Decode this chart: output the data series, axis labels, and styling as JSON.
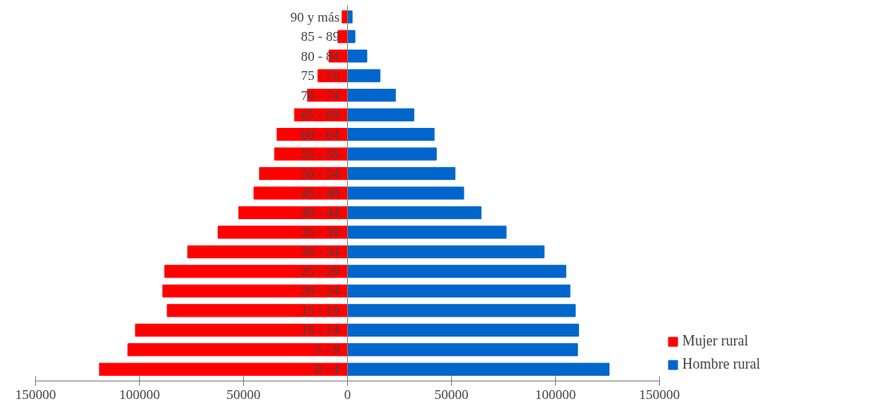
{
  "chart_data": {
    "type": "bar",
    "orientation": "horizontal",
    "stacked": true,
    "categories": [
      "90 y más",
      "85 - 89",
      "80 - 84",
      "75 - 79",
      "70 - 74",
      "65 - 69",
      "60 - 64",
      "55 - 59",
      "50 - 54",
      "45 - 49",
      "40 - 44",
      "35 - 39",
      "30 - 34",
      "25 - 29",
      "20 - 24",
      "15 - 19",
      "10 - 14",
      "5 - 9",
      "0 - 4"
    ],
    "series": [
      {
        "name": "Mujer rural",
        "color": "#ff0000",
        "values": [
          -2600,
          -4600,
          -8900,
          -14200,
          -19200,
          -25500,
          -33900,
          -35100,
          -42300,
          -45000,
          -52300,
          -62200,
          -76800,
          -87900,
          -88800,
          -86700,
          -102000,
          -105600,
          -119300
        ]
      },
      {
        "name": "Hombre rural",
        "color": "#0066cc",
        "values": [
          2200,
          3600,
          9300,
          15600,
          23000,
          31900,
          41700,
          42700,
          51700,
          55900,
          64200,
          76300,
          94500,
          105000,
          107000,
          109500,
          111100,
          110600,
          125800
        ]
      }
    ],
    "xlim": [
      -150000,
      150000
    ],
    "xticks": [
      {
        "value": -150000,
        "label": "150000"
      },
      {
        "value": -100000,
        "label": "100000"
      },
      {
        "value": -50000,
        "label": "50000"
      },
      0,
      50000,
      100000,
      150000
    ],
    "grid": false,
    "legend": "right"
  }
}
